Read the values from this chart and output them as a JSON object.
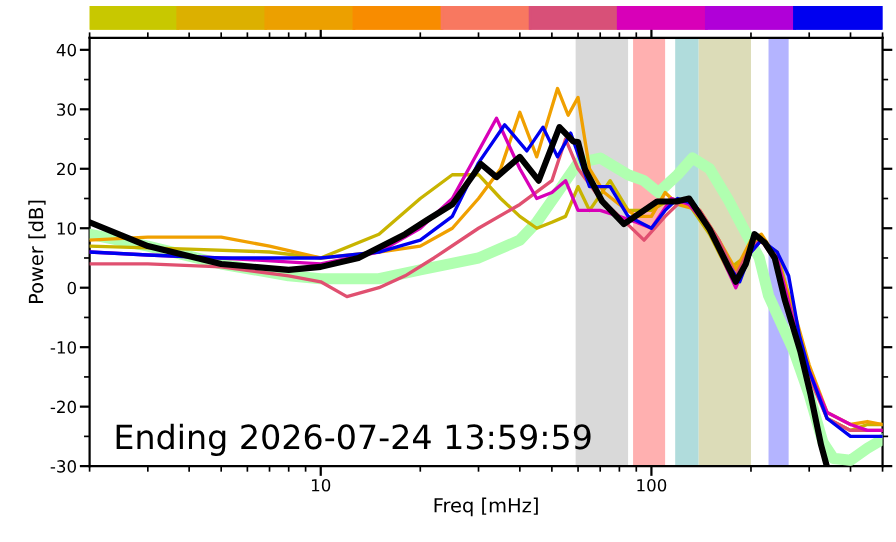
{
  "chart_data": {
    "type": "line",
    "xlabel": "Freq [mHz]",
    "ylabel": "Power [dB]",
    "log": "x",
    "xlim": [
      2,
      500
    ],
    "ylim": [
      -30,
      42
    ],
    "xticks": [
      10,
      100
    ],
    "yticks": [
      -30,
      -20,
      -10,
      0,
      10,
      20,
      30,
      40
    ],
    "grid": false,
    "legend": false,
    "annotations": [
      "Ending 2026-07-24 13:59:59"
    ],
    "bands": [
      {
        "axis": "x",
        "from": 59,
        "to": 85,
        "color": "#d9d9d9"
      },
      {
        "axis": "x",
        "from": 88,
        "to": 110,
        "color": "#ffb0b0"
      },
      {
        "axis": "x",
        "from": 118,
        "to": 139,
        "color": "#b0dcdc"
      },
      {
        "axis": "x",
        "from": 139,
        "to": 200,
        "color": "#dcdcb8"
      },
      {
        "axis": "x",
        "from": 226,
        "to": 260,
        "color": "#b4b4ff"
      }
    ],
    "series": [
      {
        "color": "#b0ffb0",
        "x": [
          2,
          3,
          5,
          8,
          10,
          15,
          20,
          30,
          40,
          45,
          52,
          60,
          70,
          85,
          95,
          105,
          120,
          133,
          150,
          170,
          188,
          212,
          226,
          270,
          300,
          330,
          355,
          400,
          450,
          500
        ],
        "values": [
          9,
          7,
          4,
          2,
          1.5,
          1.5,
          3,
          5,
          8,
          11,
          16,
          21,
          21.8,
          19,
          18,
          16,
          19,
          21.8,
          20,
          15,
          10.4,
          5,
          -1.3,
          -10.7,
          -18,
          -26,
          -28.7,
          -29,
          -27,
          -25.5
        ]
      },
      {
        "color": "#c8b400",
        "x": [
          2,
          4,
          7,
          10,
          15,
          20,
          25,
          30,
          35,
          40,
          45,
          50,
          55,
          60,
          65,
          75,
          85,
          100,
          115,
          130,
          150,
          170,
          190,
          210,
          240,
          270,
          300,
          340,
          400,
          450,
          500
        ],
        "values": [
          7,
          6.5,
          6,
          5,
          9,
          15,
          19,
          19,
          15,
          12,
          10,
          11,
          12,
          17,
          13,
          18,
          13,
          13,
          15,
          14,
          9,
          3,
          5,
          8,
          6,
          -5,
          -14,
          -22,
          -24,
          -23,
          -23
        ]
      },
      {
        "color": "#f0a000",
        "x": [
          2,
          3,
          5,
          7,
          10,
          15,
          20,
          25,
          30,
          35,
          40,
          45,
          52,
          56,
          60,
          65,
          72,
          80,
          90,
          100,
          110,
          120,
          140,
          160,
          180,
          200,
          215,
          240,
          270,
          300,
          340,
          400,
          450,
          500
        ],
        "values": [
          8,
          8.5,
          8.5,
          7,
          5,
          6,
          7,
          10,
          15,
          20,
          29.5,
          22,
          33.5,
          29,
          32,
          20,
          16,
          14,
          12,
          12,
          16,
          14,
          13,
          8,
          3,
          8,
          9,
          5,
          -4,
          -13,
          -21,
          -23,
          -22.5,
          -23
        ]
      },
      {
        "color": "#e05070",
        "x": [
          2,
          3,
          5,
          8,
          10,
          12,
          15,
          18,
          22,
          30,
          40,
          50,
          55,
          60,
          70,
          80,
          95,
          110,
          125,
          140,
          160,
          180,
          200,
          215,
          240,
          270,
          300,
          340,
          400,
          450,
          500
        ],
        "values": [
          4,
          4,
          3.5,
          2,
          1,
          -1.5,
          0,
          2,
          5,
          10,
          14,
          18,
          25,
          20,
          15,
          12,
          8,
          12,
          15,
          13,
          8,
          2,
          7,
          8,
          4,
          -6,
          -15,
          -22,
          -24,
          -24,
          -24
        ]
      },
      {
        "color": "#d800b8",
        "x": [
          2,
          3,
          5,
          10,
          15,
          20,
          25,
          30,
          34,
          40,
          45,
          50,
          55,
          60,
          70,
          80,
          90,
          100,
          115,
          130,
          150,
          170,
          180,
          200,
          215,
          240,
          270,
          300,
          340,
          400,
          450,
          500
        ],
        "values": [
          6,
          5.5,
          5,
          4,
          6,
          10,
          15,
          23,
          28.5,
          20,
          15,
          16,
          18,
          13,
          13,
          12,
          11,
          10,
          15,
          14,
          10,
          3,
          0,
          6,
          8,
          5,
          -6,
          -14,
          -21,
          -23,
          -24,
          -24
        ]
      },
      {
        "color": "#0000f0",
        "x": [
          2,
          3,
          5,
          10,
          15,
          20,
          25,
          30,
          36,
          42,
          47,
          52,
          57,
          65,
          75,
          85,
          100,
          110,
          120,
          135,
          150,
          170,
          185,
          200,
          215,
          240,
          260,
          280,
          300,
          340,
          400,
          450,
          500
        ],
        "values": [
          6,
          5.5,
          5,
          5,
          6,
          8,
          12,
          21,
          27.4,
          23,
          27,
          22,
          26,
          17,
          17,
          12,
          10,
          13,
          15,
          14,
          10,
          4,
          1,
          6,
          8,
          6,
          2,
          -8,
          -14,
          -22,
          -25,
          -25,
          -25
        ]
      },
      {
        "color": "#000000",
        "x": [
          2,
          3,
          5,
          8,
          10,
          13,
          18,
          21,
          25,
          30.5,
          34,
          40,
          45.6,
          52.7,
          58,
          60,
          63,
          71,
          82.6,
          104,
          119,
          130,
          150,
          180,
          193,
          205,
          220,
          236,
          253,
          282,
          303,
          326,
          338
        ],
        "values": [
          11,
          7,
          4,
          3,
          3.5,
          5,
          9,
          11.4,
          14,
          20.8,
          18.6,
          22,
          18,
          27,
          24.6,
          24.5,
          19.9,
          14.5,
          10.7,
          14.5,
          14.5,
          15,
          9.8,
          1,
          4,
          9,
          7.6,
          5,
          -2,
          -10.7,
          -18,
          -26.5,
          -29.7
        ]
      }
    ]
  }
}
